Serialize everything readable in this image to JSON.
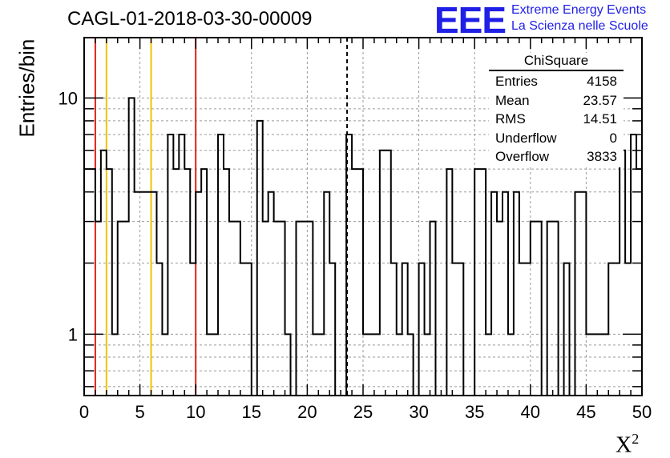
{
  "header": {
    "title": "CAGL-01-2018-03-30-00009",
    "logo_text": "EEE",
    "logo_line1": "Extreme Energy Events",
    "logo_line2": "La Scienza nelle Scuole"
  },
  "stats_box": {
    "title": "ChiSquare",
    "rows": [
      {
        "label": "Entries",
        "value": "4158"
      },
      {
        "label": "Mean",
        "value": "23.57"
      },
      {
        "label": "RMS",
        "value": "14.51"
      },
      {
        "label": "Underflow",
        "value": "0"
      },
      {
        "label": "Overflow",
        "value": "3833"
      }
    ]
  },
  "colors": {
    "histogram": "#000000",
    "red_lines": "#e0201b",
    "yellow_lines": "#f2c200",
    "mean_line": "#000000",
    "grid": "#9a9a9a",
    "logo": "#1f1fe6"
  },
  "chart_data": {
    "type": "histogram",
    "title": "CAGL-01-2018-03-30-00009",
    "xlabel": "χ²",
    "ylabel": "Entries/bin",
    "xlim": [
      0,
      50
    ],
    "ylim": [
      0.55,
      18
    ],
    "yscale": "log",
    "grid": true,
    "bin_width": 0.5,
    "x_ticks": [
      0,
      5,
      10,
      15,
      20,
      25,
      30,
      35,
      40,
      45,
      50
    ],
    "y_tick_labels": [
      {
        "value": 1,
        "label": "1"
      },
      {
        "value": 10,
        "label": "10"
      }
    ],
    "values": [
      5,
      5,
      3,
      6,
      5,
      1,
      3,
      3,
      10,
      4,
      4,
      4,
      4,
      2,
      1,
      7,
      5,
      7,
      5,
      2,
      4,
      5,
      1,
      1,
      7,
      5,
      3,
      3,
      2,
      2,
      0,
      8,
      3,
      4,
      3,
      3,
      1,
      0,
      3,
      3,
      3,
      1,
      1,
      4,
      2,
      0,
      0,
      7,
      5,
      5,
      1,
      1,
      1,
      6,
      6,
      2,
      1,
      2,
      1,
      0,
      2,
      1,
      3,
      0,
      0,
      5,
      2,
      2,
      0,
      0,
      5,
      5,
      1,
      4,
      3,
      4,
      1,
      4,
      2,
      2,
      3,
      3,
      0,
      3,
      3,
      0,
      2,
      0,
      4,
      4,
      1,
      1,
      1,
      1,
      2,
      2,
      6,
      2,
      7,
      5
    ],
    "vertical_lines": [
      {
        "x": 1,
        "color": "red",
        "style": "solid"
      },
      {
        "x": 2,
        "color": "yellow",
        "style": "solid"
      },
      {
        "x": 6,
        "color": "yellow",
        "style": "solid"
      },
      {
        "x": 10,
        "color": "red",
        "style": "solid"
      },
      {
        "x": 23.57,
        "color": "black",
        "style": "dashed"
      }
    ]
  }
}
